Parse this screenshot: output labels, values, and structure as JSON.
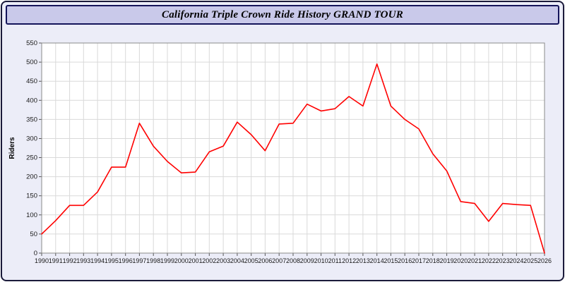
{
  "header": {
    "title": "California Triple Crown Ride History GRAND TOUR"
  },
  "chart_data": {
    "type": "line",
    "title": "California Triple Crown Ride History GRAND TOUR",
    "xlabel": "",
    "ylabel": "Riders",
    "ylim": [
      0,
      550
    ],
    "ytick_step": 50,
    "grid": true,
    "grid_color": "#d9d9d9",
    "plot_bg": "#ffffff",
    "plot_border_color": "#8a8a8a",
    "line_color": "#ff0000",
    "tick_label_color": "#1a1a1a",
    "x": [
      1990,
      1991,
      1992,
      1993,
      1994,
      1995,
      1996,
      1997,
      1998,
      1999,
      2000,
      2001,
      2002,
      2003,
      2004,
      2005,
      2006,
      2007,
      2008,
      2009,
      2010,
      2011,
      2012,
      2013,
      2014,
      2015,
      2016,
      2017,
      2018,
      2019,
      2020,
      2021,
      2022,
      2023,
      2024,
      2025,
      2026
    ],
    "values": [
      50,
      85,
      125,
      125,
      160,
      225,
      225,
      340,
      280,
      240,
      210,
      212,
      265,
      280,
      343,
      310,
      268,
      338,
      340,
      390,
      372,
      378,
      410,
      385,
      495,
      385,
      350,
      325,
      260,
      215,
      135,
      130,
      83,
      130,
      127,
      125,
      0
    ]
  }
}
